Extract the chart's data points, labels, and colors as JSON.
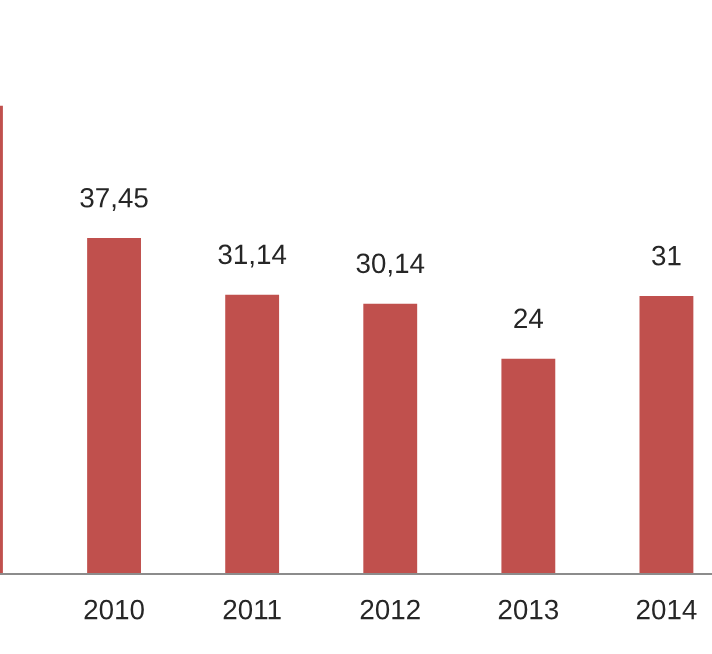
{
  "chart_data": {
    "type": "bar",
    "categories": [
      null,
      "2010",
      "2011",
      "2012",
      "2013",
      "2014"
    ],
    "values": [
      52.2,
      37.45,
      31.14,
      30.14,
      24,
      31
    ],
    "value_labels": [
      null,
      "37,45",
      "31,14",
      "30,14",
      "24",
      "31"
    ],
    "color": "#c0504d",
    "grid": false,
    "legend": false,
    "tick_labels": "x"
  }
}
